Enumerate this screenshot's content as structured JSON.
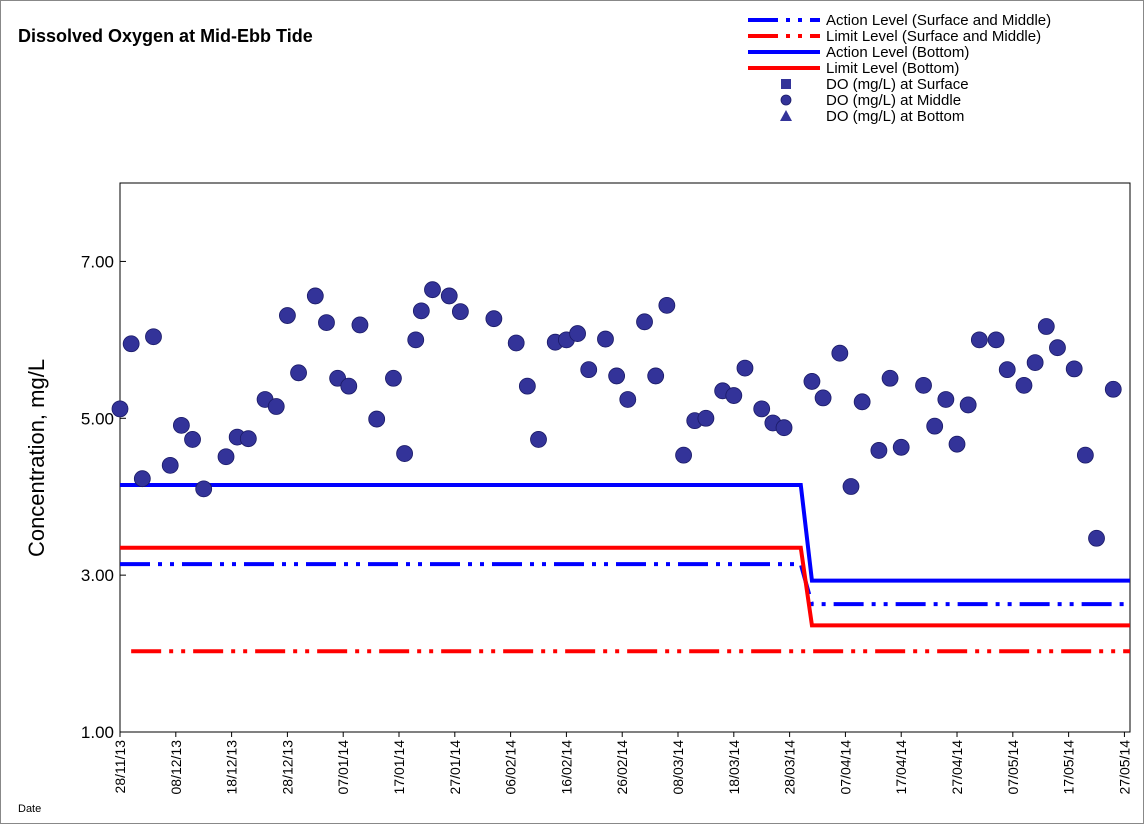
{
  "chart_data": {
    "type": "line",
    "title": "Dissolved Oxygen at Mid-Ebb Tide",
    "y_label": "Concentration, mg/L",
    "x_label": "Date",
    "xlim": [
      "2013-11-28",
      "2014-05-28"
    ],
    "xticks": [
      {
        "value": "2013-11-28",
        "label": "28/11/13"
      },
      {
        "value": "2013-12-08",
        "label": "08/12/13"
      },
      {
        "value": "2013-12-18",
        "label": "18/12/13"
      },
      {
        "value": "2013-12-28",
        "label": "28/12/13"
      },
      {
        "value": "2014-01-07",
        "label": "07/01/14"
      },
      {
        "value": "2014-01-17",
        "label": "17/01/14"
      },
      {
        "value": "2014-01-27",
        "label": "27/01/14"
      },
      {
        "value": "2014-02-06",
        "label": "06/02/14"
      },
      {
        "value": "2014-02-16",
        "label": "16/02/14"
      },
      {
        "value": "2014-02-26",
        "label": "26/02/14"
      },
      {
        "value": "2014-03-08",
        "label": "08/03/14"
      },
      {
        "value": "2014-03-18",
        "label": "18/03/14"
      },
      {
        "value": "2014-03-28",
        "label": "28/03/14"
      },
      {
        "value": "2014-04-07",
        "label": "07/04/14"
      },
      {
        "value": "2014-04-17",
        "label": "17/04/14"
      },
      {
        "value": "2014-04-27",
        "label": "27/04/14"
      },
      {
        "value": "2014-05-07",
        "label": "07/05/14"
      },
      {
        "value": "2014-05-17",
        "label": "17/05/14"
      },
      {
        "value": "2014-05-27",
        "label": "27/05/14"
      }
    ],
    "ylim": [
      1,
      8
    ],
    "yticks": [
      {
        "value": 1,
        "label": "1.00"
      },
      {
        "value": 3,
        "label": "3.00"
      },
      {
        "value": 5,
        "label": "5.00"
      },
      {
        "value": 7,
        "label": "7.00"
      }
    ],
    "legend": "top-right",
    "series": [
      {
        "name": "Action Level (Surface and Middle)",
        "color": "#0000ff",
        "style": "dash-dot",
        "x": [
          "2013-11-28",
          "2014-03-30",
          "2014-04-01",
          "2014-05-28"
        ],
        "values": [
          3.14,
          3.14,
          2.63,
          2.63
        ]
      },
      {
        "name": "Limit Level (Surface and Middle)",
        "color": "#ff0000",
        "style": "dash-dot",
        "x": [
          "2013-11-30",
          "2014-05-28"
        ],
        "values": [
          2.03,
          2.03
        ]
      },
      {
        "name": "Action Level (Bottom)",
        "color": "#0000ff",
        "style": "solid",
        "x": [
          "2013-11-28",
          "2014-03-30",
          "2014-04-01",
          "2014-05-28"
        ],
        "values": [
          4.15,
          4.15,
          2.93,
          2.93
        ]
      },
      {
        "name": "Limit Level (Bottom)",
        "color": "#ff0000",
        "style": "solid",
        "x": [
          "2013-11-28",
          "2014-03-30",
          "2014-04-01",
          "2014-05-28"
        ],
        "values": [
          3.35,
          3.35,
          2.36,
          2.36
        ]
      },
      {
        "name": "DO (mg/L) at Surface",
        "color": "#333399",
        "style": "square",
        "x": [],
        "values": []
      },
      {
        "name": "DO (mg/L) at Middle",
        "color": "#333399",
        "style": "circle",
        "x": [
          "2013-11-28",
          "2013-11-30",
          "2013-12-02",
          "2013-12-04",
          "2013-12-07",
          "2013-12-09",
          "2013-12-11",
          "2013-12-13",
          "2013-12-17",
          "2013-12-19",
          "2013-12-21",
          "2013-12-24",
          "2013-12-26",
          "2013-12-28",
          "2013-12-30",
          "2014-01-02",
          "2014-01-04",
          "2014-01-06",
          "2014-01-08",
          "2014-01-10",
          "2014-01-13",
          "2014-01-16",
          "2014-01-18",
          "2014-01-20",
          "2014-01-21",
          "2014-01-23",
          "2014-01-26",
          "2014-01-28",
          "2014-02-03",
          "2014-02-07",
          "2014-02-09",
          "2014-02-11",
          "2014-02-14",
          "2014-02-16",
          "2014-02-18",
          "2014-02-20",
          "2014-02-23",
          "2014-02-25",
          "2014-02-27",
          "2014-03-02",
          "2014-03-04",
          "2014-03-06",
          "2014-03-09",
          "2014-03-11",
          "2014-03-13",
          "2014-03-16",
          "2014-03-18",
          "2014-03-20",
          "2014-03-23",
          "2014-03-25",
          "2014-03-27",
          "2014-04-01",
          "2014-04-03",
          "2014-04-06",
          "2014-04-08",
          "2014-04-10",
          "2014-04-13",
          "2014-04-15",
          "2014-04-17",
          "2014-04-21",
          "2014-04-23",
          "2014-04-25",
          "2014-04-27",
          "2014-04-29",
          "2014-05-01",
          "2014-05-04",
          "2014-05-06",
          "2014-05-09",
          "2014-05-11",
          "2014-05-13",
          "2014-05-15",
          "2014-05-18",
          "2014-05-20",
          "2014-05-22",
          "2014-05-25"
        ],
        "values": [
          5.12,
          5.95,
          4.23,
          6.04,
          4.4,
          4.91,
          4.73,
          4.1,
          4.51,
          4.76,
          4.74,
          5.24,
          5.15,
          6.31,
          5.58,
          6.56,
          6.22,
          5.51,
          5.41,
          6.19,
          4.99,
          5.51,
          4.55,
          6.0,
          6.37,
          6.64,
          6.56,
          6.36,
          6.27,
          5.96,
          5.41,
          4.73,
          5.97,
          6.0,
          6.08,
          5.62,
          6.01,
          5.54,
          5.24,
          6.23,
          5.54,
          6.44,
          4.53,
          4.97,
          5.0,
          5.35,
          5.29,
          5.64,
          5.12,
          4.94,
          4.88,
          5.47,
          5.26,
          5.83,
          4.13,
          5.21,
          4.59,
          5.51,
          4.63,
          5.42,
          4.9,
          5.24,
          4.67,
          5.17,
          6.0,
          6.0,
          5.62,
          5.42,
          5.71,
          6.17,
          5.9,
          5.63,
          4.53,
          3.47,
          5.37
        ]
      },
      {
        "name": "DO (mg/L) at Bottom",
        "color": "#333399",
        "style": "triangle",
        "x": [],
        "values": []
      }
    ]
  }
}
